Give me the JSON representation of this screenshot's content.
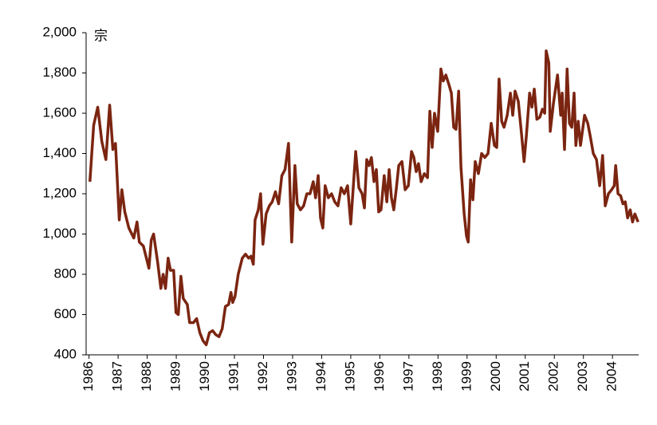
{
  "chart_data": {
    "type": "line",
    "unit_label": "宗",
    "x": [
      1986.03,
      1986.16,
      1986.3,
      1986.44,
      1986.58,
      1986.71,
      1986.82,
      1986.91,
      1987.04,
      1987.13,
      1987.23,
      1987.37,
      1987.54,
      1987.65,
      1987.73,
      1987.87,
      1988.06,
      1988.14,
      1988.22,
      1988.36,
      1988.47,
      1988.55,
      1988.63,
      1988.72,
      1988.8,
      1988.91,
      1988.99,
      1989.07,
      1989.16,
      1989.24,
      1989.38,
      1989.46,
      1989.59,
      1989.7,
      1989.81,
      1989.92,
      1990.03,
      1990.14,
      1990.25,
      1990.36,
      1990.47,
      1990.58,
      1990.69,
      1990.8,
      1990.88,
      1990.94,
      1991.02,
      1991.13,
      1991.27,
      1991.38,
      1991.49,
      1991.57,
      1991.65,
      1991.71,
      1991.82,
      1991.9,
      1991.98,
      1992.09,
      1992.2,
      1992.3,
      1992.41,
      1992.52,
      1992.63,
      1992.74,
      1992.86,
      1992.97,
      1993.08,
      1993.16,
      1993.27,
      1993.38,
      1993.49,
      1993.6,
      1993.71,
      1993.79,
      1993.88,
      1993.96,
      1994.04,
      1994.12,
      1994.23,
      1994.34,
      1994.45,
      1994.56,
      1994.67,
      1994.78,
      1994.89,
      1995.0,
      1995.08,
      1995.17,
      1995.28,
      1995.39,
      1995.47,
      1995.55,
      1995.63,
      1995.71,
      1995.8,
      1995.88,
      1995.96,
      1996.04,
      1996.15,
      1996.24,
      1996.32,
      1996.4,
      1996.48,
      1996.57,
      1996.65,
      1996.76,
      1996.87,
      1996.98,
      1997.09,
      1997.17,
      1997.25,
      1997.33,
      1997.42,
      1997.53,
      1997.64,
      1997.72,
      1997.8,
      1997.88,
      1997.99,
      1998.1,
      1998.18,
      1998.27,
      1998.38,
      1998.46,
      1998.54,
      1998.62,
      1998.71,
      1998.79,
      1998.9,
      1998.98,
      1999.04,
      1999.12,
      1999.2,
      1999.28,
      1999.39,
      1999.5,
      1999.61,
      1999.72,
      1999.83,
      1999.94,
      2000.02,
      2000.1,
      2000.19,
      2000.27,
      2000.38,
      2000.49,
      2000.57,
      2000.65,
      2000.76,
      2000.87,
      2000.96,
      2001.04,
      2001.15,
      2001.23,
      2001.31,
      2001.4,
      2001.5,
      2001.59,
      2001.67,
      2001.72,
      2001.81,
      2001.86,
      2001.97,
      2002.11,
      2002.22,
      2002.27,
      2002.35,
      2002.44,
      2002.52,
      2002.6,
      2002.68,
      2002.74,
      2002.82,
      2002.9,
      2003.04,
      2003.15,
      2003.23,
      2003.34,
      2003.45,
      2003.56,
      2003.66,
      2003.75,
      2003.86,
      2003.97,
      2004.06,
      2004.11,
      2004.19,
      2004.28,
      2004.36,
      2004.44,
      2004.52,
      2004.61,
      2004.69,
      2004.77,
      2004.88
    ],
    "series": [
      {
        "name": "宗",
        "color": "#7b2511",
        "values": [
          1260,
          1540,
          1630,
          1460,
          1370,
          1640,
          1420,
          1450,
          1070,
          1220,
          1110,
          1030,
          980,
          1060,
          960,
          940,
          830,
          970,
          1000,
          860,
          730,
          800,
          730,
          880,
          820,
          820,
          610,
          600,
          790,
          680,
          650,
          560,
          560,
          580,
          510,
          470,
          450,
          510,
          520,
          500,
          490,
          530,
          640,
          650,
          710,
          660,
          690,
          800,
          880,
          900,
          880,
          890,
          850,
          1070,
          1120,
          1200,
          950,
          1100,
          1140,
          1160,
          1210,
          1150,
          1290,
          1320,
          1450,
          960,
          1340,
          1150,
          1120,
          1140,
          1200,
          1200,
          1260,
          1180,
          1290,
          1080,
          1030,
          1240,
          1180,
          1200,
          1160,
          1140,
          1230,
          1200,
          1240,
          1050,
          1220,
          1410,
          1230,
          1200,
          1130,
          1370,
          1340,
          1380,
          1260,
          1320,
          1110,
          1120,
          1290,
          1160,
          1320,
          1180,
          1120,
          1230,
          1340,
          1360,
          1220,
          1240,
          1410,
          1380,
          1310,
          1350,
          1260,
          1300,
          1280,
          1610,
          1430,
          1600,
          1510,
          1820,
          1760,
          1790,
          1740,
          1700,
          1530,
          1520,
          1710,
          1330,
          1100,
          990,
          960,
          1270,
          1170,
          1360,
          1300,
          1400,
          1380,
          1400,
          1550,
          1440,
          1430,
          1770,
          1560,
          1530,
          1590,
          1700,
          1590,
          1710,
          1660,
          1500,
          1360,
          1490,
          1700,
          1630,
          1720,
          1570,
          1580,
          1620,
          1600,
          1910,
          1850,
          1510,
          1650,
          1790,
          1590,
          1700,
          1420,
          1820,
          1550,
          1530,
          1700,
          1440,
          1560,
          1440,
          1590,
          1550,
          1490,
          1400,
          1370,
          1240,
          1390,
          1140,
          1200,
          1220,
          1240,
          1340,
          1200,
          1190,
          1150,
          1160,
          1080,
          1120,
          1060,
          1100,
          1060
        ]
      }
    ],
    "xlim": [
      1985.9,
      2004.9
    ],
    "xticks": [
      1986,
      1987,
      1988,
      1989,
      1990,
      1991,
      1992,
      1993,
      1994,
      1995,
      1996,
      1997,
      1998,
      1999,
      2000,
      2001,
      2002,
      2003,
      2004
    ],
    "ylim": [
      400,
      2000
    ],
    "yticks": [
      400,
      600,
      800,
      {
        "value": 1000,
        "label": "1,000"
      },
      {
        "value": 1200,
        "label": "1,200"
      },
      {
        "value": 1400,
        "label": "1,400"
      },
      {
        "value": 1600,
        "label": "1,600"
      },
      {
        "value": 1800,
        "label": "1,800"
      },
      {
        "value": 2000,
        "label": "2,000"
      }
    ],
    "grid": false
  }
}
